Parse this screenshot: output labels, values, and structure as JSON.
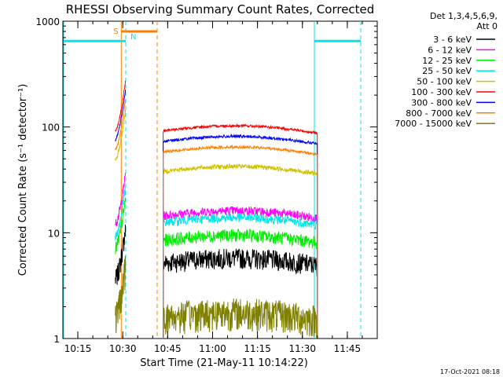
{
  "chart_data": {
    "type": "line",
    "title": "RHESSI Observing Summary Count Rates, Corrected",
    "xlabel": "Start Time (21-May-11 10:14:22)",
    "ylabel": "Corrected Count Rate (s⁻¹ detector⁻¹)",
    "y_scale": "log",
    "ylim": [
      1,
      1000
    ],
    "y_ticks": [
      "1",
      "10",
      "100",
      "1000"
    ],
    "x_ticks": [
      "10:15",
      "10:30",
      "10:45",
      "11:00",
      "11:15",
      "11:30",
      "11:45"
    ],
    "legend_header": [
      "Det 1,3,4,5,6,9,",
      "Att 0"
    ],
    "legend_position": "right",
    "series": [
      {
        "name": "3 - 6 keV",
        "color": "#000000",
        "level1": 3.6,
        "level2": 5.2,
        "noise": 0.22
      },
      {
        "name": "6 - 12 keV",
        "color": "#ff00ff",
        "level1": 12,
        "level2": 14.5,
        "noise": 0.1
      },
      {
        "name": "12 - 25 keV",
        "color": "#00ee00",
        "level1": 7,
        "level2": 8.5,
        "noise": 0.14
      },
      {
        "name": "25 - 50 keV",
        "color": "#00e5e5",
        "level1": 9,
        "level2": 12.5,
        "noise": 0.1
      },
      {
        "name": "50 - 100 keV",
        "color": "#d0c000",
        "level1": 48,
        "level2": 38,
        "noise": 0.05
      },
      {
        "name": "100 - 300 keV",
        "color": "#ff0000",
        "level1": 90,
        "level2": 92,
        "noise": 0.03
      },
      {
        "name": "300 - 800 keV",
        "color": "#0000ff",
        "level1": 75,
        "level2": 73,
        "noise": 0.03
      },
      {
        "name": "800 - 7000 keV",
        "color": "#ff8000",
        "level1": 60,
        "level2": 58,
        "noise": 0.03
      },
      {
        "name": "7000 - 15000 keV",
        "color": "#808000",
        "level1": 1.6,
        "level2": 1.6,
        "noise": 0.35
      }
    ],
    "intervals": [
      {
        "label": "S",
        "color": "#ff8000",
        "start": "10:29.5",
        "end": "10:41.5",
        "y": 800
      },
      {
        "label": "N",
        "color": "#00e5e5",
        "start": "10:15",
        "end": "10:31",
        "y": 650
      }
    ],
    "footer_date": "17-Oct-2021 08:18"
  }
}
